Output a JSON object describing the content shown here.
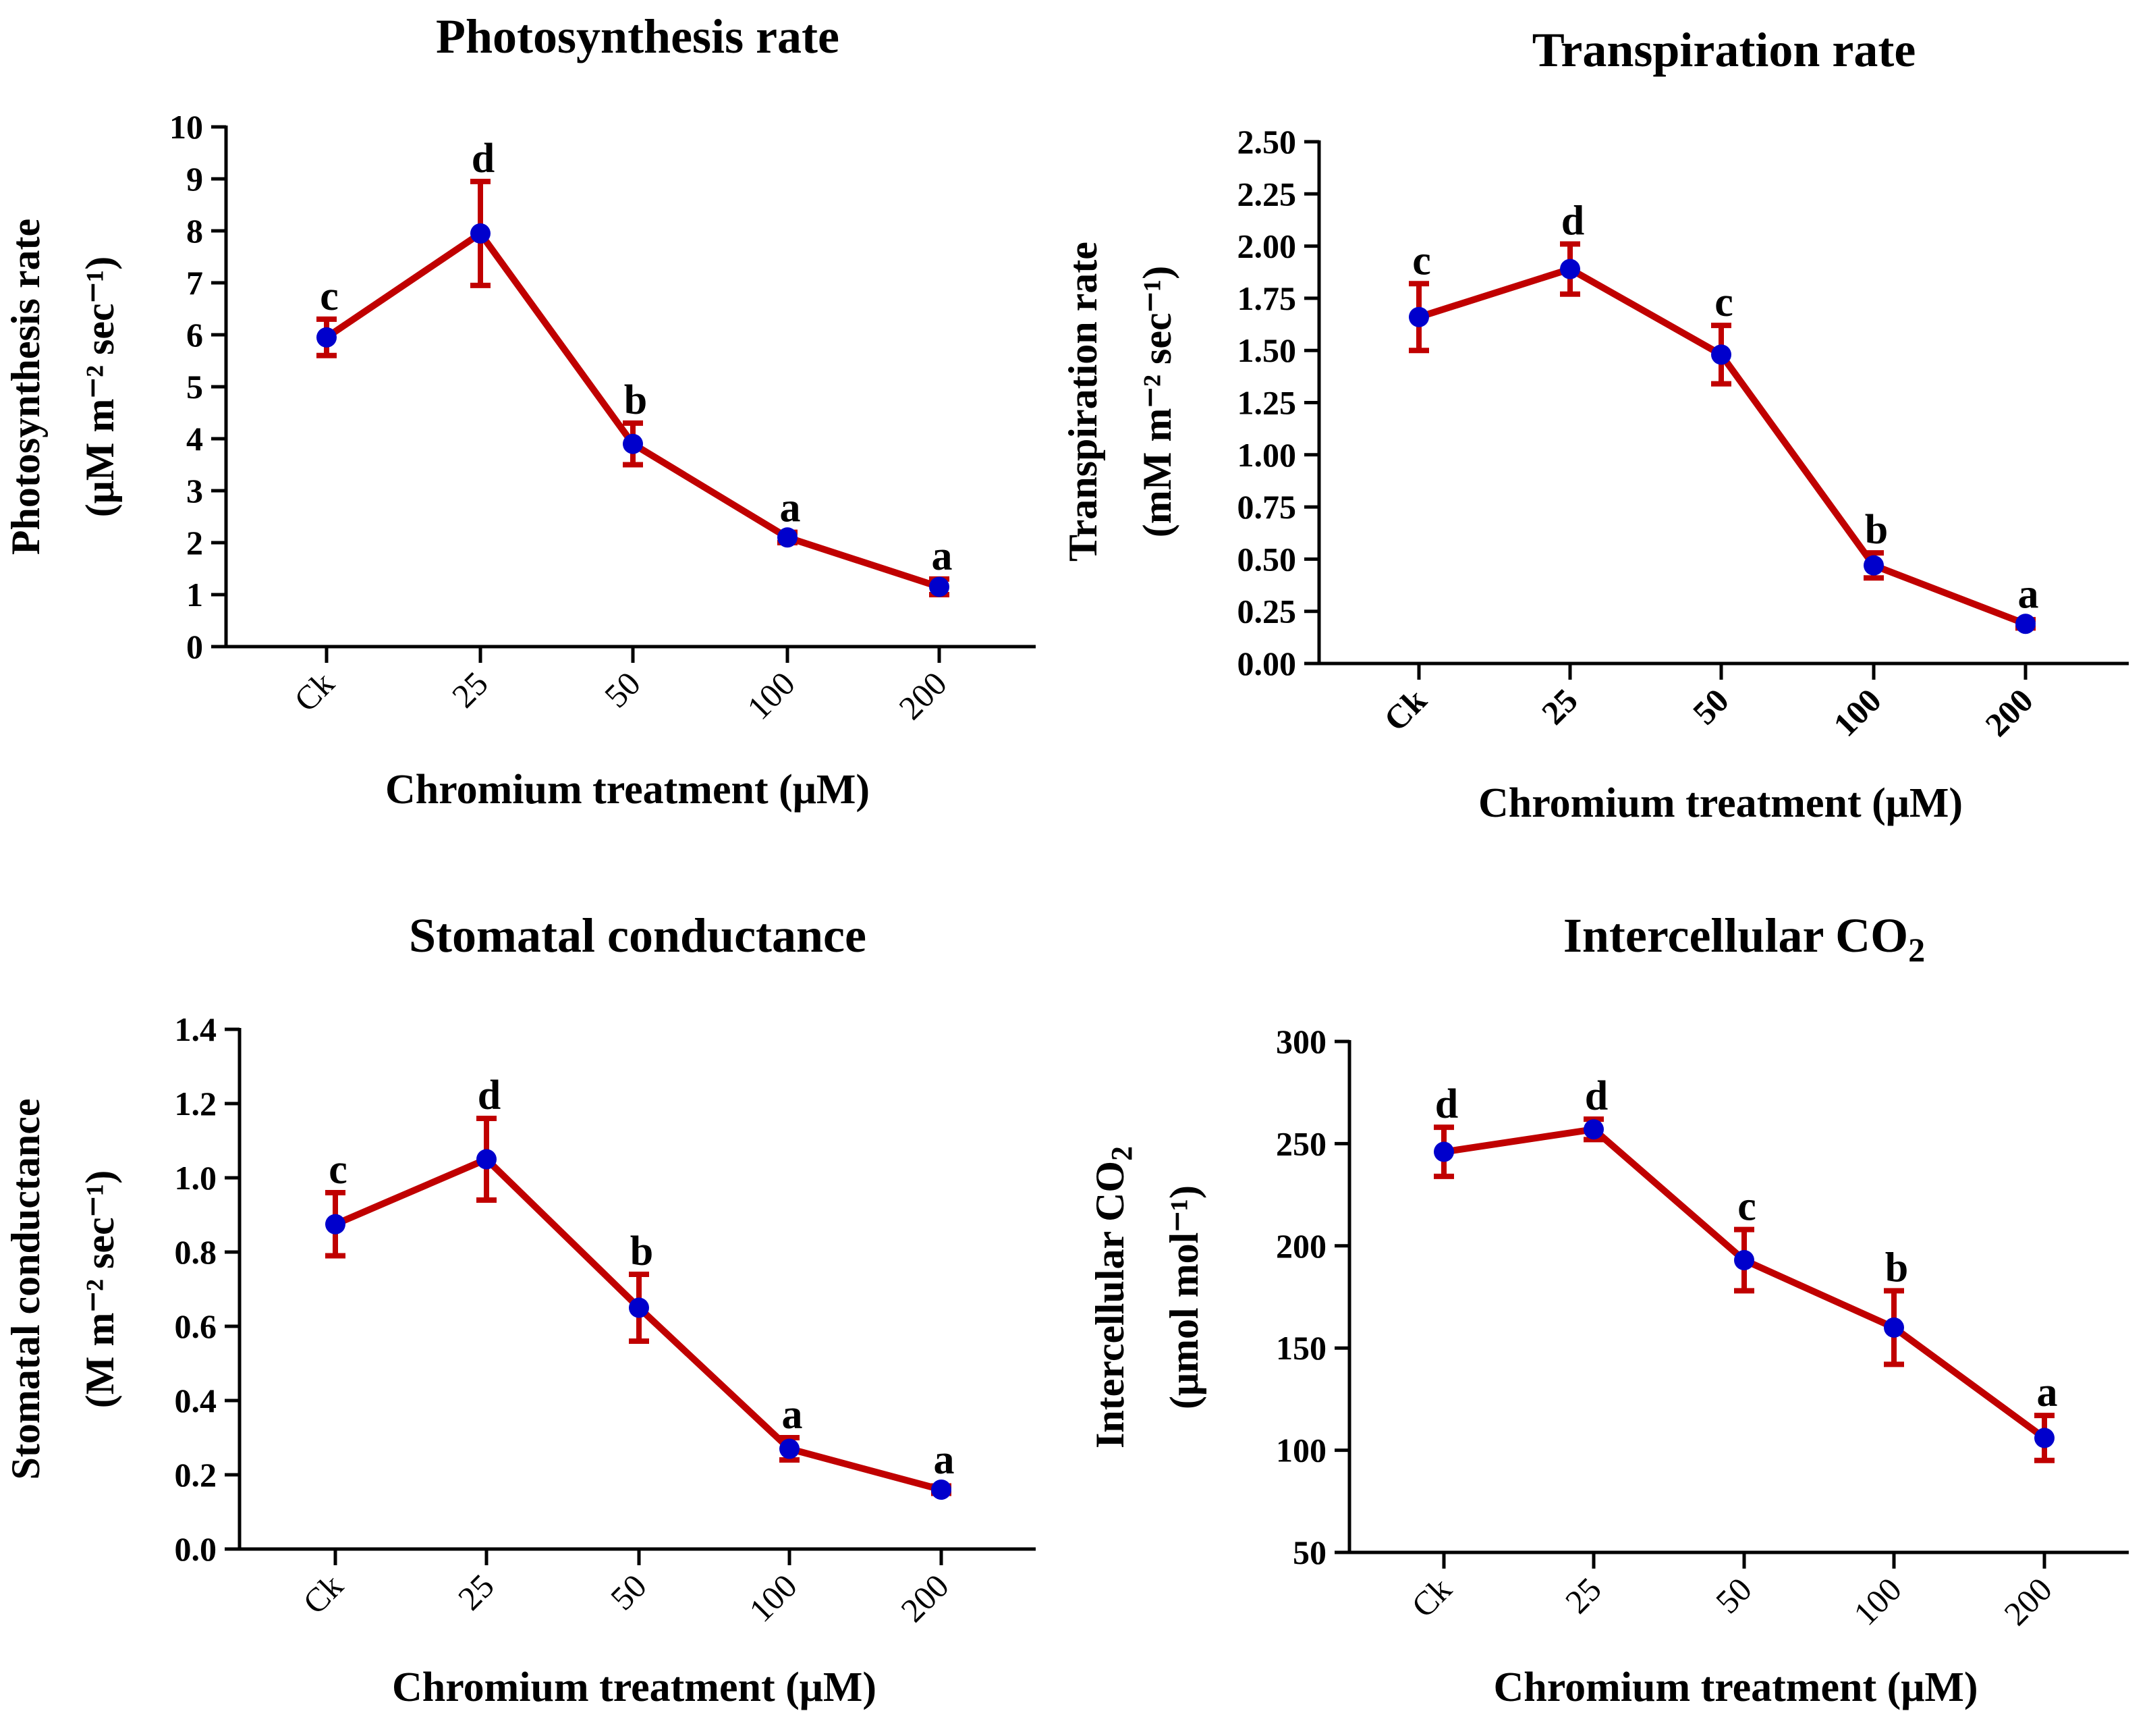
{
  "colors": {
    "line": "#c00000",
    "error_bar": "#c00000",
    "marker": "#0000cc",
    "axis": "#000000"
  },
  "chart_data": [
    {
      "type": "line",
      "title": "Photosynthesis rate",
      "ylabel_line1": "Photosynthesis rate",
      "ylabel_line2": "(μM m⁻² sec⁻¹)",
      "xlabel": "Chromium treatment (μM)",
      "categories": [
        "Ck",
        "25",
        "50",
        "100",
        "200"
      ],
      "values": [
        5.95,
        7.95,
        3.9,
        2.1,
        1.15
      ],
      "errors": [
        0.35,
        1.0,
        0.4,
        0.1,
        0.15
      ],
      "significance": [
        "c",
        "d",
        "b",
        "a",
        "a"
      ],
      "ylim": [
        0,
        10
      ],
      "yticks": [
        "0",
        "1",
        "2",
        "3",
        "4",
        "5",
        "6",
        "7",
        "8",
        "9",
        "10"
      ],
      "xtick_bold": false
    },
    {
      "type": "line",
      "title": "Transpiration rate",
      "ylabel_line1": "Transpiration rate",
      "ylabel_line2": "(mM m⁻² sec⁻¹)",
      "xlabel": "Chromium treatment (μM)",
      "categories": [
        "Ck",
        "25",
        "50",
        "100",
        "200"
      ],
      "values": [
        1.66,
        1.89,
        1.48,
        0.47,
        0.19
      ],
      "errors": [
        0.16,
        0.12,
        0.14,
        0.06,
        0.02
      ],
      "significance": [
        "c",
        "d",
        "c",
        "b",
        "a"
      ],
      "ylim": [
        0,
        2.5
      ],
      "yticks": [
        "0.00",
        "0.25",
        "0.50",
        "0.75",
        "1.00",
        "1.25",
        "1.50",
        "1.75",
        "2.00",
        "2.25",
        "2.50"
      ],
      "xtick_bold": true
    },
    {
      "type": "line",
      "title": "Stomatal conductance",
      "ylabel_line1": "Stomatal conductance",
      "ylabel_line2": "(M m⁻² sec⁻¹)",
      "xlabel": "Chromium treatment (μM)",
      "categories": [
        "Ck",
        "25",
        "50",
        "100",
        "200"
      ],
      "values": [
        0.875,
        1.05,
        0.65,
        0.27,
        0.16
      ],
      "errors": [
        0.085,
        0.11,
        0.09,
        0.03,
        0.01
      ],
      "significance": [
        "c",
        "d",
        "b",
        "a",
        "a"
      ],
      "ylim": [
        0,
        1.4
      ],
      "yticks": [
        "0.0",
        "0.2",
        "0.4",
        "0.6",
        "0.8",
        "1.0",
        "1.2",
        "1.4"
      ],
      "xtick_bold": false
    },
    {
      "type": "line",
      "title": "Intercellular CO",
      "title_sub": "2",
      "ylabel_line1": "Intercellular CO",
      "ylabel_line1_sub": "2",
      "ylabel_line2": "(μmol mol⁻¹)",
      "xlabel": "Chromium treatment (μM)",
      "categories": [
        "Ck",
        "25",
        "50",
        "100",
        "200"
      ],
      "values": [
        246,
        257,
        193,
        160,
        106
      ],
      "errors": [
        12,
        5,
        15,
        18,
        11
      ],
      "significance": [
        "d",
        "d",
        "c",
        "b",
        "a"
      ],
      "ylim": [
        50,
        300
      ],
      "yticks": [
        "50",
        "100",
        "150",
        "200",
        "250",
        "300"
      ],
      "xtick_bold": false
    }
  ]
}
